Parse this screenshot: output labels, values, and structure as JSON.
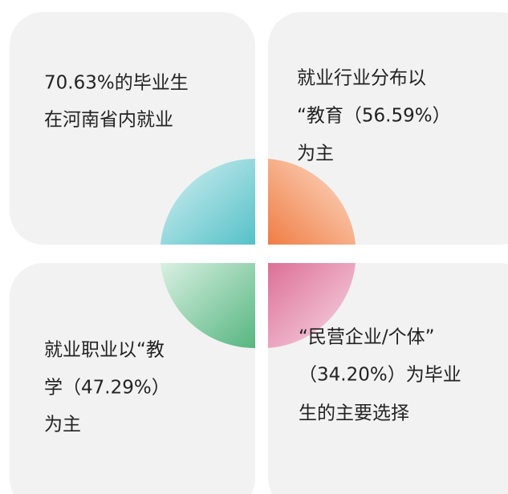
{
  "cards": [
    {
      "lines": [
        "70.63%的毕业生",
        "在河南省内就业"
      ]
    },
    {
      "lines": [
        "就业行业分布以",
        "“教育（56.59%）",
        "为主"
      ]
    },
    {
      "lines": [
        "就业职业以“教",
        "学（47.29%）",
        "为主"
      ]
    },
    {
      "lines": [
        "“民营企业/个体”",
        "（34.20%）为毕业",
        "生的主要选择"
      ]
    }
  ]
}
